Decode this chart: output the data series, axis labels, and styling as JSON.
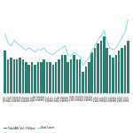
{
  "x_labels": [
    "3Q13",
    "4Q13",
    "1Q14",
    "2Q14",
    "3Q14",
    "4Q14",
    "1Q15",
    "2Q15",
    "3Q15",
    "4Q15",
    "1Q16",
    "2Q16",
    "3Q16",
    "4Q16",
    "1Q17",
    "2Q17",
    "3Q17",
    "4Q17",
    "1Q18",
    "2Q18",
    "3Q18",
    "4Q18",
    "1Q19",
    "2Q19",
    "3Q19",
    "4Q19",
    "1Q20",
    "2Q20",
    "3Q20",
    "4Q20",
    "1Q21",
    "2Q21",
    "3Q21",
    "4Q21",
    "1Q22",
    "2Q22",
    "3Q22",
    "4Q22",
    "1Q23",
    "2Q23",
    "3Q23",
    "4Q23"
  ],
  "bar_values": [
    18,
    14,
    15,
    14,
    14,
    15,
    14,
    13,
    12,
    13,
    12,
    13,
    13,
    14,
    13,
    13,
    12,
    13,
    14,
    16,
    16,
    13,
    14,
    16,
    14,
    14,
    9,
    11,
    13,
    17,
    19,
    21,
    22,
    24,
    19,
    16,
    15,
    16,
    18,
    19,
    20,
    22
  ],
  "line_values": [
    85,
    72,
    68,
    76,
    72,
    68,
    65,
    62,
    65,
    62,
    59,
    63,
    62,
    65,
    59,
    57,
    55,
    59,
    62,
    65,
    68,
    55,
    53,
    59,
    55,
    53,
    40,
    46,
    50,
    62,
    68,
    77,
    82,
    90,
    75,
    65,
    62,
    65,
    72,
    80,
    87,
    105
  ],
  "bar_color": "#2e7d72",
  "line_color": "#7fd8e8",
  "background_color": "#ffffff",
  "legend_bar_label": "Total ABL Vol. (US$bn)",
  "legend_line_label": "Deal Count"
}
